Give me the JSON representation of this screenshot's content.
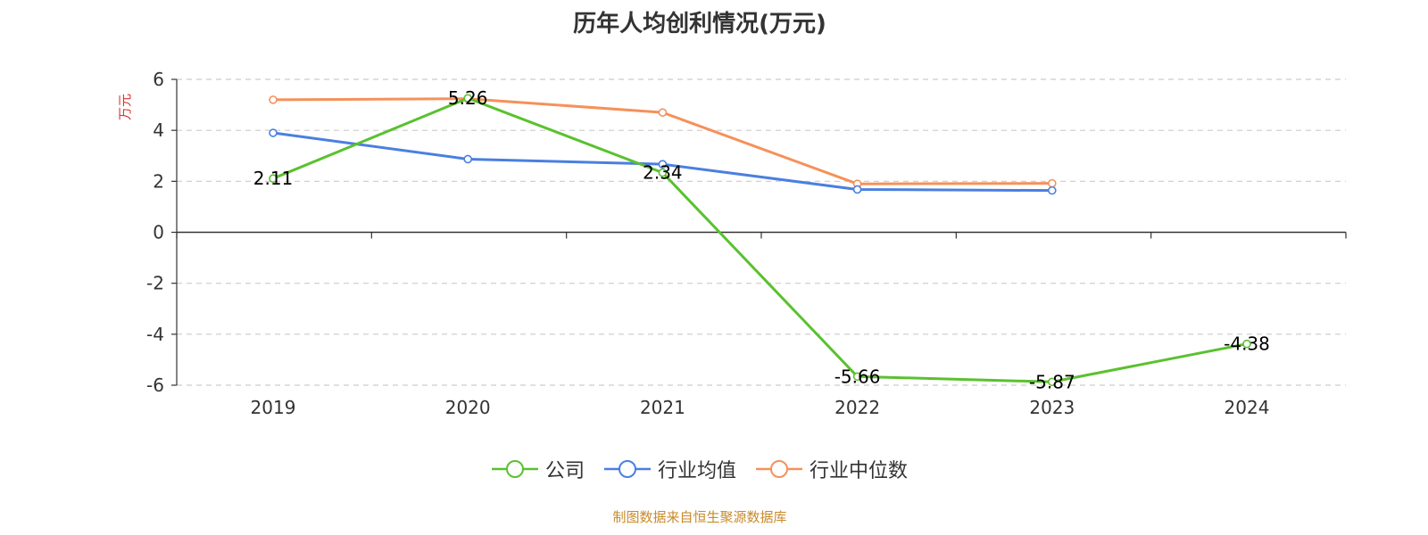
{
  "chart_data": {
    "type": "line",
    "title": "历年人均创利情况(万元)",
    "ylabel": "万元",
    "xlabel": "",
    "categories": [
      "2019",
      "2020",
      "2021",
      "2022",
      "2023",
      "2024"
    ],
    "ylim": [
      -6,
      6
    ],
    "yticks": [
      6,
      4,
      2,
      0,
      -2,
      -4,
      -6
    ],
    "grid": true,
    "legend_position": "bottom-center",
    "series": [
      {
        "name": "公司",
        "color": "#5ac12f",
        "values": [
          2.11,
          5.26,
          2.34,
          -5.66,
          -5.87,
          -4.38
        ],
        "show_labels": true
      },
      {
        "name": "行业均值",
        "color": "#4a7fe0",
        "values": [
          3.9,
          2.87,
          2.67,
          1.68,
          1.64,
          null
        ],
        "show_labels": false
      },
      {
        "name": "行业中位数",
        "color": "#f5915a",
        "values": [
          5.2,
          5.24,
          4.7,
          1.9,
          1.92,
          null
        ],
        "show_labels": false
      }
    ]
  },
  "source_note": "制图数据来自恒生聚源数据库",
  "colors": {
    "axis": "#333333",
    "grid": "#cccccc",
    "ylabel": "#e03030",
    "source": "#c98a2a"
  }
}
